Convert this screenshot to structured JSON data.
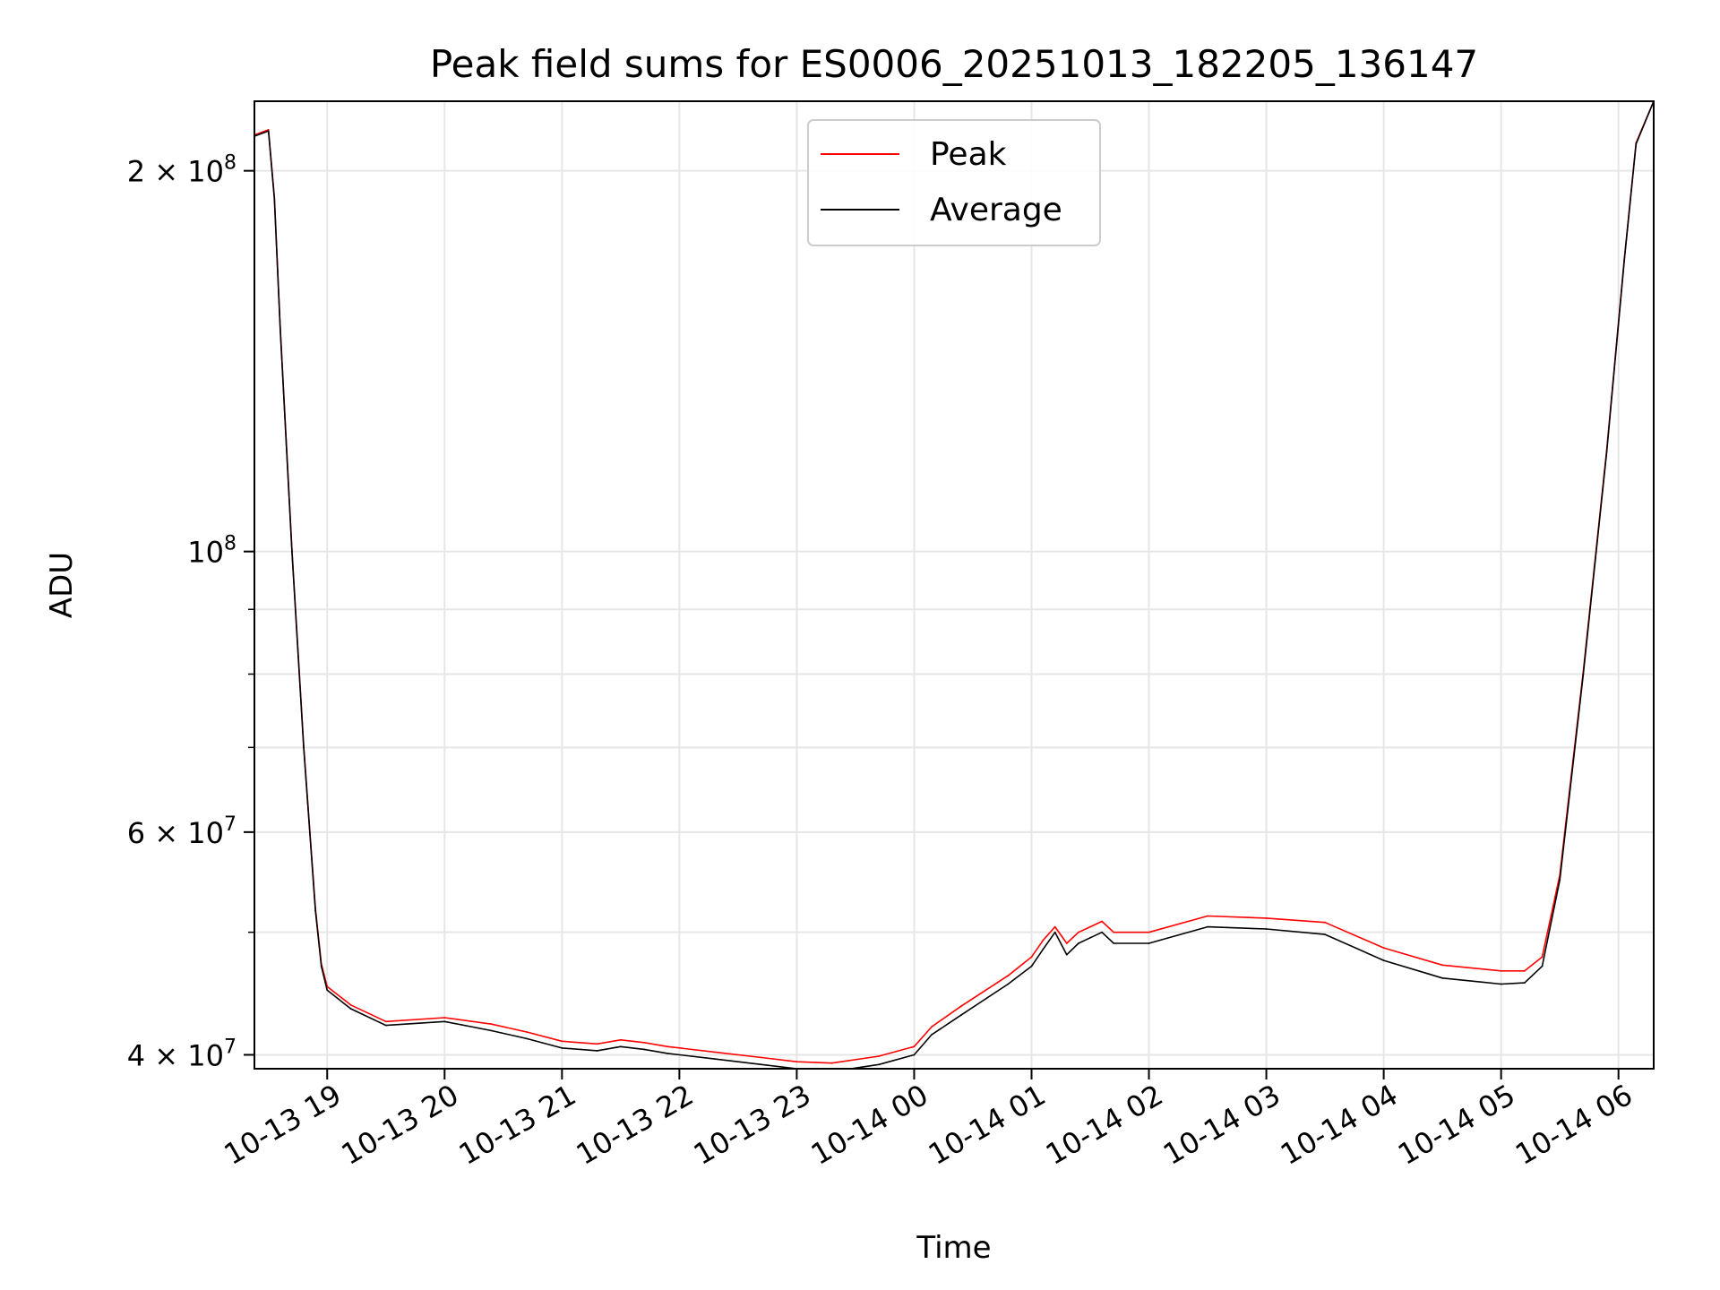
{
  "chart_data": {
    "type": "line",
    "title": "Peak field sums for ES0006_20251013_182205_136147",
    "xlabel": "Time",
    "ylabel": "ADU",
    "yscale": "log",
    "ylim": [
      39000000,
      227000000
    ],
    "xlim_hours": [
      18.38,
      30.3
    ],
    "x_ticks": [
      {
        "hour": 19,
        "label": "10-13 19"
      },
      {
        "hour": 20,
        "label": "10-13 20"
      },
      {
        "hour": 21,
        "label": "10-13 21"
      },
      {
        "hour": 22,
        "label": "10-13 22"
      },
      {
        "hour": 23,
        "label": "10-13 23"
      },
      {
        "hour": 24,
        "label": "10-14 00"
      },
      {
        "hour": 25,
        "label": "10-14 01"
      },
      {
        "hour": 26,
        "label": "10-14 02"
      },
      {
        "hour": 27,
        "label": "10-14 03"
      },
      {
        "hour": 28,
        "label": "10-14 04"
      },
      {
        "hour": 29,
        "label": "10-14 05"
      },
      {
        "hour": 30,
        "label": "10-14 06"
      }
    ],
    "y_ticks": [
      {
        "value": 40000000,
        "mantissa": "4 × 10",
        "exp": "7"
      },
      {
        "value": 60000000,
        "mantissa": "6 × 10",
        "exp": "7"
      },
      {
        "value": 100000000,
        "mantissa": "10",
        "exp": "8"
      },
      {
        "value": 200000000,
        "mantissa": "2 × 10",
        "exp": "8"
      }
    ],
    "y_minor_ticks": [
      50000000,
      70000000,
      80000000,
      90000000
    ],
    "legend": {
      "position": "top-center",
      "entries": [
        "Peak",
        "Average"
      ]
    },
    "colors": {
      "peak": "#ff0000",
      "average": "#000000",
      "grid": "#e6e6e6"
    },
    "series": [
      {
        "name": "Average",
        "x_hours": [
          18.38,
          18.5,
          18.55,
          18.6,
          18.7,
          18.8,
          18.9,
          18.95,
          19.0,
          19.2,
          19.5,
          20.0,
          20.4,
          20.7,
          21.0,
          21.3,
          21.5,
          21.7,
          21.9,
          22.3,
          22.7,
          23.0,
          23.3,
          23.7,
          24.0,
          24.15,
          24.4,
          24.8,
          25.0,
          25.1,
          25.2,
          25.3,
          25.4,
          25.5,
          25.6,
          25.7,
          26.0,
          26.5,
          27.0,
          27.5,
          28.0,
          28.5,
          29.0,
          29.2,
          29.35,
          29.5,
          29.7,
          29.9,
          30.05,
          30.15,
          30.3
        ],
        "values": [
          213000000,
          215000000,
          190000000,
          150000000,
          100000000,
          70000000,
          52000000,
          47000000,
          45000000,
          43500000,
          42200000,
          42500000,
          41800000,
          41200000,
          40500000,
          40300000,
          40600000,
          40400000,
          40100000,
          39700000,
          39300000,
          39000000,
          38800000,
          39300000,
          40000000,
          41500000,
          43000000,
          45500000,
          47000000,
          48500000,
          50000000,
          48000000,
          49000000,
          49500000,
          50000000,
          49000000,
          49000000,
          50500000,
          50300000,
          49800000,
          47500000,
          46000000,
          45500000,
          45600000,
          47000000,
          55000000,
          80000000,
          120000000,
          170000000,
          210000000,
          227000000
        ]
      },
      {
        "name": "Peak",
        "x_hours": [
          18.38,
          18.5,
          18.55,
          18.6,
          18.7,
          18.8,
          18.9,
          18.95,
          19.0,
          19.2,
          19.5,
          20.0,
          20.4,
          20.7,
          21.0,
          21.3,
          21.5,
          21.7,
          21.9,
          22.3,
          22.7,
          23.0,
          23.3,
          23.7,
          24.0,
          24.15,
          24.4,
          24.8,
          25.0,
          25.1,
          25.2,
          25.3,
          25.4,
          25.5,
          25.6,
          25.7,
          26.0,
          26.5,
          27.0,
          27.5,
          28.0,
          28.5,
          29.0,
          29.2,
          29.35,
          29.5,
          29.7,
          29.9,
          30.05,
          30.15,
          30.3
        ],
        "values": [
          213500000,
          215500000,
          190500000,
          150500000,
          100300000,
          70200000,
          52200000,
          47200000,
          45300000,
          43800000,
          42500000,
          42800000,
          42300000,
          41700000,
          41000000,
          40800000,
          41100000,
          40900000,
          40600000,
          40200000,
          39800000,
          39500000,
          39400000,
          39900000,
          40600000,
          42100000,
          43700000,
          46200000,
          47800000,
          49300000,
          50500000,
          49000000,
          50000000,
          50500000,
          51000000,
          50000000,
          50000000,
          51500000,
          51300000,
          50900000,
          48600000,
          47100000,
          46600000,
          46600000,
          47800000,
          55500000,
          80400000,
          120400000,
          170400000,
          210400000,
          227000000
        ]
      }
    ]
  }
}
